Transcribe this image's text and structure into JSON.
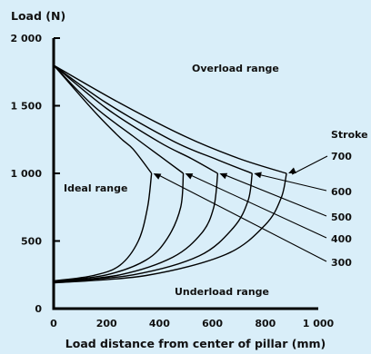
{
  "chart_data": {
    "type": "line",
    "title": "",
    "ylabel": "Load (N)",
    "xlabel": "Load distance from center of pillar (mm)",
    "xlim": [
      0,
      1000
    ],
    "ylim": [
      0,
      2000
    ],
    "x_ticks": [
      "0",
      "200",
      "400",
      "600",
      "800",
      "1 000"
    ],
    "y_ticks": [
      "0",
      "500",
      "1 000",
      "1 500",
      "2 000"
    ],
    "grid": false,
    "regions": {
      "overload": "Overload range",
      "ideal": "Ideal range",
      "underload": "Underload range"
    },
    "stroke_header": "Stroke",
    "series": [
      {
        "name": "300",
        "upper": [
          [
            0,
            1800
          ],
          [
            150,
            1465
          ],
          [
            250,
            1265
          ],
          [
            300,
            1180
          ],
          [
            370,
            1000
          ]
        ],
        "lower": [
          [
            0,
            205
          ],
          [
            150,
            245
          ],
          [
            250,
            320
          ],
          [
            320,
            500
          ],
          [
            355,
            750
          ],
          [
            370,
            1000
          ]
        ]
      },
      {
        "name": "400",
        "upper": [
          [
            0,
            1800
          ],
          [
            150,
            1500
          ],
          [
            300,
            1275
          ],
          [
            400,
            1130
          ],
          [
            490,
            1000
          ]
        ],
        "lower": [
          [
            0,
            200
          ],
          [
            200,
            250
          ],
          [
            350,
            360
          ],
          [
            430,
            520
          ],
          [
            480,
            750
          ],
          [
            490,
            1000
          ]
        ]
      },
      {
        "name": "500",
        "upper": [
          [
            0,
            1800
          ],
          [
            200,
            1480
          ],
          [
            400,
            1230
          ],
          [
            520,
            1110
          ],
          [
            620,
            1000
          ]
        ],
        "lower": [
          [
            0,
            195
          ],
          [
            250,
            250
          ],
          [
            450,
            380
          ],
          [
            560,
            560
          ],
          [
            605,
            750
          ],
          [
            620,
            1000
          ]
        ]
      },
      {
        "name": "600",
        "upper": [
          [
            0,
            1800
          ],
          [
            200,
            1520
          ],
          [
            450,
            1240
          ],
          [
            620,
            1100
          ],
          [
            750,
            1000
          ]
        ],
        "lower": [
          [
            0,
            195
          ],
          [
            300,
            250
          ],
          [
            550,
            390
          ],
          [
            680,
            600
          ],
          [
            735,
            800
          ],
          [
            750,
            1000
          ]
        ]
      },
      {
        "name": "700",
        "upper": [
          [
            0,
            1800
          ],
          [
            250,
            1520
          ],
          [
            500,
            1270
          ],
          [
            700,
            1110
          ],
          [
            880,
            1000
          ]
        ],
        "lower": [
          [
            0,
            190
          ],
          [
            350,
            245
          ],
          [
            650,
            400
          ],
          [
            800,
            620
          ],
          [
            860,
            820
          ],
          [
            880,
            1000
          ]
        ]
      }
    ]
  }
}
